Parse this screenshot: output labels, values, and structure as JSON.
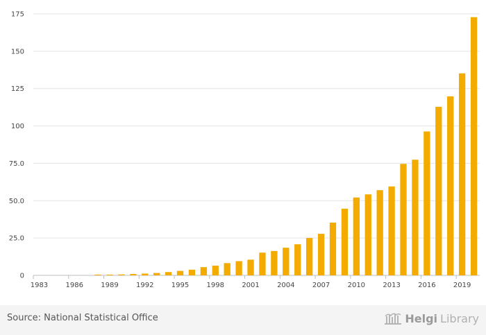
{
  "chart_data": {
    "type": "bar",
    "categories": [
      "1983",
      "1984",
      "1985",
      "1986",
      "1987",
      "1988",
      "1989",
      "1990",
      "1991",
      "1992",
      "1993",
      "1994",
      "1995",
      "1996",
      "1997",
      "1998",
      "1999",
      "2000",
      "2001",
      "2002",
      "2003",
      "2004",
      "2005",
      "2006",
      "2007",
      "2008",
      "2009",
      "2010",
      "2011",
      "2012",
      "2013",
      "2014",
      "2015",
      "2016",
      "2017",
      "2018",
      "2019",
      "2020"
    ],
    "values": [
      0,
      0,
      0,
      0,
      0,
      0.5,
      0.5,
      0.6,
      0.9,
      1.2,
      1.6,
      2.2,
      3.0,
      3.8,
      5.5,
      6.5,
      8.2,
      9.5,
      10.5,
      15.2,
      16.3,
      18.5,
      20.8,
      25.0,
      27.8,
      35.3,
      44.6,
      52.1,
      54.2,
      57.0,
      59.5,
      74.6,
      77.4,
      96.3,
      112.8,
      119.8,
      135.2,
      172.8
    ],
    "x_tick_labels": [
      "1983",
      "1986",
      "1989",
      "1992",
      "1995",
      "1998",
      "2001",
      "2004",
      "2007",
      "2010",
      "2013",
      "2016",
      "2019"
    ],
    "y_ticks": [
      "0",
      "25.0",
      "50.0",
      "75.0",
      "100",
      "125",
      "150",
      "175"
    ],
    "y_tick_values": [
      0,
      25,
      50,
      75,
      100,
      125,
      150,
      175
    ],
    "ylim": [
      0,
      175
    ],
    "title": "",
    "xlabel": "",
    "ylabel": "",
    "grid": true,
    "bar_color": "#f4ab00",
    "grid_color": "#e3e3e3"
  },
  "footer": {
    "source": "Source: National Statistical Office",
    "brand_part1": "Helgi",
    "brand_part2": "Library",
    "brand_icon": "library-building-icon"
  }
}
